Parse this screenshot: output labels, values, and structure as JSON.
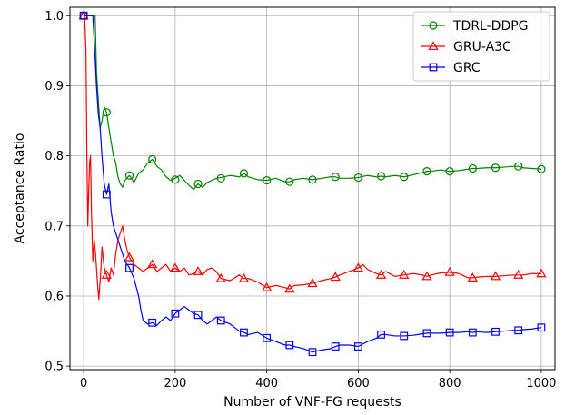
{
  "chart_data": {
    "type": "line",
    "xlabel": "Number of VNF-FG requests",
    "ylabel": "Acceptance Ratio",
    "xlim": [
      -30,
      1030
    ],
    "ylim": [
      0.495,
      1.012
    ],
    "xticks": [
      0,
      200,
      400,
      600,
      800,
      1000
    ],
    "yticks": [
      0.5,
      0.6,
      0.7,
      0.8,
      0.9,
      1.0
    ],
    "xtick_labels": [
      "0",
      "200",
      "400",
      "600",
      "800",
      "1000"
    ],
    "ytick_labels": [
      "0.5",
      "0.6",
      "0.7",
      "0.8",
      "0.9",
      "1.0"
    ],
    "grid": true,
    "legend_position": "top-right",
    "series": [
      {
        "name": "TDRL-DDPG",
        "color": "#008000",
        "marker": "circle",
        "x": [
          0,
          5,
          10,
          15,
          20,
          25,
          28,
          32,
          36,
          40,
          45,
          50,
          55,
          60,
          65,
          70,
          75,
          80,
          85,
          90,
          100,
          110,
          120,
          130,
          140,
          150,
          160,
          170,
          180,
          190,
          200,
          210,
          220,
          230,
          240,
          250,
          260,
          270,
          280,
          290,
          300,
          320,
          340,
          350,
          360,
          380,
          400,
          420,
          440,
          450,
          460,
          480,
          500,
          520,
          540,
          550,
          560,
          580,
          600,
          620,
          640,
          650,
          660,
          680,
          700,
          720,
          740,
          750,
          760,
          780,
          800,
          820,
          840,
          850,
          860,
          880,
          900,
          920,
          940,
          950,
          960,
          980,
          1000
        ],
        "y": [
          1.0,
          1.0,
          1.0,
          1.0,
          1.0,
          1.0,
          0.92,
          0.88,
          0.84,
          0.85,
          0.87,
          0.862,
          0.84,
          0.82,
          0.8,
          0.79,
          0.77,
          0.76,
          0.755,
          0.765,
          0.772,
          0.762,
          0.775,
          0.78,
          0.79,
          0.795,
          0.785,
          0.78,
          0.77,
          0.765,
          0.768,
          0.772,
          0.765,
          0.758,
          0.752,
          0.76,
          0.755,
          0.762,
          0.765,
          0.768,
          0.769,
          0.772,
          0.77,
          0.775,
          0.77,
          0.766,
          0.765,
          0.768,
          0.763,
          0.763,
          0.766,
          0.768,
          0.766,
          0.768,
          0.77,
          0.77,
          0.768,
          0.768,
          0.769,
          0.772,
          0.77,
          0.771,
          0.77,
          0.772,
          0.77,
          0.773,
          0.776,
          0.778,
          0.778,
          0.78,
          0.778,
          0.779,
          0.781,
          0.782,
          0.782,
          0.783,
          0.783,
          0.784,
          0.785,
          0.785,
          0.783,
          0.782,
          0.781
        ],
        "marker_x": [
          0,
          50,
          100,
          150,
          200,
          250,
          300,
          350,
          400,
          450,
          500,
          550,
          600,
          650,
          700,
          750,
          800,
          850,
          900,
          950,
          1000
        ],
        "marker_y": [
          1.0,
          0.862,
          0.772,
          0.795,
          0.766,
          0.76,
          0.768,
          0.775,
          0.765,
          0.763,
          0.766,
          0.77,
          0.769,
          0.771,
          0.77,
          0.778,
          0.778,
          0.782,
          0.783,
          0.785,
          0.781
        ]
      },
      {
        "name": "GRU-A3C",
        "color": "#ff0000",
        "marker": "triangle",
        "x": [
          0,
          2,
          5,
          7,
          9,
          11,
          13,
          15,
          17,
          20,
          23,
          26,
          30,
          33,
          37,
          40,
          45,
          50,
          55,
          60,
          65,
          70,
          75,
          80,
          85,
          90,
          95,
          100,
          110,
          120,
          130,
          140,
          150,
          160,
          170,
          180,
          190,
          200,
          210,
          220,
          230,
          240,
          250,
          260,
          270,
          280,
          290,
          300,
          320,
          340,
          350,
          360,
          380,
          400,
          420,
          440,
          450,
          460,
          480,
          500,
          520,
          540,
          550,
          560,
          580,
          600,
          610,
          620,
          640,
          650,
          660,
          680,
          700,
          720,
          740,
          750,
          760,
          780,
          800,
          820,
          840,
          850,
          860,
          880,
          900,
          920,
          940,
          950,
          960,
          980,
          1000
        ],
        "y": [
          1.0,
          1.0,
          0.95,
          0.8,
          0.7,
          0.75,
          0.79,
          0.8,
          0.72,
          0.65,
          0.68,
          0.66,
          0.62,
          0.595,
          0.63,
          0.67,
          0.64,
          0.63,
          0.62,
          0.64,
          0.63,
          0.66,
          0.68,
          0.69,
          0.7,
          0.68,
          0.665,
          0.655,
          0.645,
          0.64,
          0.635,
          0.64,
          0.645,
          0.635,
          0.64,
          0.645,
          0.635,
          0.64,
          0.635,
          0.64,
          0.63,
          0.632,
          0.635,
          0.63,
          0.638,
          0.64,
          0.635,
          0.625,
          0.622,
          0.63,
          0.625,
          0.625,
          0.62,
          0.612,
          0.615,
          0.612,
          0.61,
          0.615,
          0.616,
          0.618,
          0.622,
          0.625,
          0.627,
          0.63,
          0.635,
          0.64,
          0.645,
          0.638,
          0.632,
          0.63,
          0.635,
          0.628,
          0.63,
          0.632,
          0.63,
          0.628,
          0.63,
          0.633,
          0.634,
          0.632,
          0.626,
          0.626,
          0.627,
          0.628,
          0.628,
          0.629,
          0.63,
          0.63,
          0.63,
          0.632,
          0.632
        ],
        "marker_x": [
          0,
          50,
          100,
          150,
          200,
          250,
          300,
          350,
          400,
          450,
          500,
          550,
          600,
          650,
          700,
          750,
          800,
          850,
          900,
          950,
          1000
        ],
        "marker_y": [
          1.0,
          0.63,
          0.655,
          0.645,
          0.64,
          0.635,
          0.625,
          0.625,
          0.612,
          0.61,
          0.618,
          0.627,
          0.64,
          0.63,
          0.63,
          0.628,
          0.634,
          0.626,
          0.628,
          0.63,
          0.632
        ]
      },
      {
        "name": "GRC",
        "color": "#0000ff",
        "marker": "square",
        "x": [
          0,
          10,
          20,
          25,
          28,
          32,
          36,
          40,
          45,
          50,
          55,
          60,
          65,
          70,
          75,
          80,
          85,
          90,
          95,
          100,
          110,
          120,
          125,
          130,
          140,
          150,
          160,
          170,
          180,
          190,
          200,
          210,
          220,
          230,
          240,
          250,
          260,
          270,
          280,
          290,
          300,
          320,
          340,
          350,
          360,
          380,
          400,
          420,
          440,
          450,
          460,
          480,
          500,
          520,
          540,
          550,
          560,
          580,
          600,
          620,
          640,
          650,
          660,
          680,
          700,
          720,
          740,
          750,
          760,
          780,
          800,
          820,
          840,
          850,
          860,
          880,
          900,
          920,
          940,
          950,
          960,
          980,
          1000
        ],
        "y": [
          1.0,
          1.0,
          1.0,
          0.94,
          0.9,
          0.86,
          0.84,
          0.8,
          0.76,
          0.745,
          0.76,
          0.72,
          0.7,
          0.69,
          0.68,
          0.67,
          0.66,
          0.65,
          0.645,
          0.64,
          0.625,
          0.6,
          0.58,
          0.565,
          0.56,
          0.562,
          0.558,
          0.565,
          0.57,
          0.565,
          0.575,
          0.58,
          0.585,
          0.58,
          0.575,
          0.573,
          0.565,
          0.56,
          0.565,
          0.57,
          0.565,
          0.56,
          0.55,
          0.548,
          0.545,
          0.548,
          0.54,
          0.535,
          0.53,
          0.53,
          0.528,
          0.525,
          0.52,
          0.523,
          0.525,
          0.528,
          0.53,
          0.53,
          0.528,
          0.535,
          0.54,
          0.545,
          0.545,
          0.543,
          0.543,
          0.544,
          0.546,
          0.547,
          0.547,
          0.547,
          0.548,
          0.548,
          0.549,
          0.548,
          0.549,
          0.548,
          0.549,
          0.55,
          0.551,
          0.551,
          0.552,
          0.553,
          0.555
        ],
        "marker_x": [
          0,
          50,
          100,
          150,
          200,
          250,
          300,
          350,
          400,
          450,
          500,
          550,
          600,
          650,
          700,
          750,
          800,
          850,
          900,
          950,
          1000
        ],
        "marker_y": [
          1.0,
          0.745,
          0.64,
          0.562,
          0.575,
          0.573,
          0.565,
          0.548,
          0.54,
          0.53,
          0.52,
          0.528,
          0.528,
          0.545,
          0.543,
          0.547,
          0.548,
          0.548,
          0.549,
          0.551,
          0.555
        ]
      }
    ]
  }
}
